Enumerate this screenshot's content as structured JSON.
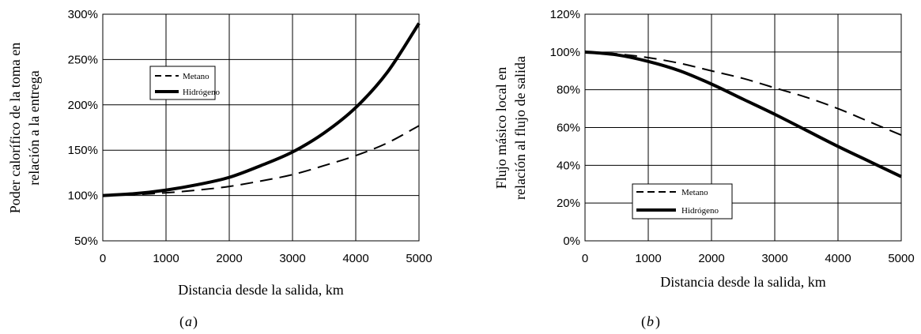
{
  "chart_data": [
    {
      "type": "line",
      "panel_label": "a",
      "xlabel": "Distancia desde la salida, km",
      "ylabel_lines": [
        "Poder calorífico de la toma en",
        "relación a la entrega"
      ],
      "x": [
        0,
        500,
        1000,
        1500,
        2000,
        2500,
        3000,
        3500,
        4000,
        4500,
        5000
      ],
      "xlim": [
        0,
        5000
      ],
      "ylim": [
        50,
        300
      ],
      "xticks": [
        "0",
        "1000",
        "2000",
        "3000",
        "4000",
        "5000"
      ],
      "yticks": [
        "50%",
        "100%",
        "150%",
        "200%",
        "250%",
        "300%"
      ],
      "grid": true,
      "legend_position": "upper-left",
      "series": [
        {
          "name": "Metano",
          "style": "dashed",
          "values": [
            100,
            101,
            103,
            106,
            110,
            116,
            123,
            133,
            144,
            158,
            177
          ]
        },
        {
          "name": "Hidrógeno",
          "style": "solid",
          "values": [
            100,
            102,
            106,
            112,
            120,
            133,
            148,
            169,
            197,
            236,
            290
          ]
        }
      ]
    },
    {
      "type": "line",
      "panel_label": "b",
      "xlabel": "Distancia desde la salida, km",
      "ylabel_lines": [
        "Flujo másico local en",
        "relación al flujo de salida"
      ],
      "x": [
        0,
        500,
        1000,
        1500,
        2000,
        2500,
        3000,
        3500,
        4000,
        4500,
        5000
      ],
      "xlim": [
        0,
        5000
      ],
      "ylim": [
        0,
        120
      ],
      "xticks": [
        "0",
        "1000",
        "2000",
        "3000",
        "4000",
        "5000"
      ],
      "yticks": [
        "0%",
        "20%",
        "40%",
        "60%",
        "80%",
        "100%",
        "120%"
      ],
      "grid": true,
      "legend_position": "lower-left",
      "series": [
        {
          "name": "Metano",
          "style": "dashed",
          "values": [
            100,
            99,
            97,
            94,
            90,
            86,
            81,
            76,
            70,
            63,
            56
          ]
        },
        {
          "name": "Hidrógeno",
          "style": "solid",
          "values": [
            100,
            98.5,
            95,
            90,
            83,
            75,
            67,
            58.5,
            50,
            42,
            34
          ]
        }
      ]
    }
  ],
  "captions": [
    "a",
    "b"
  ]
}
